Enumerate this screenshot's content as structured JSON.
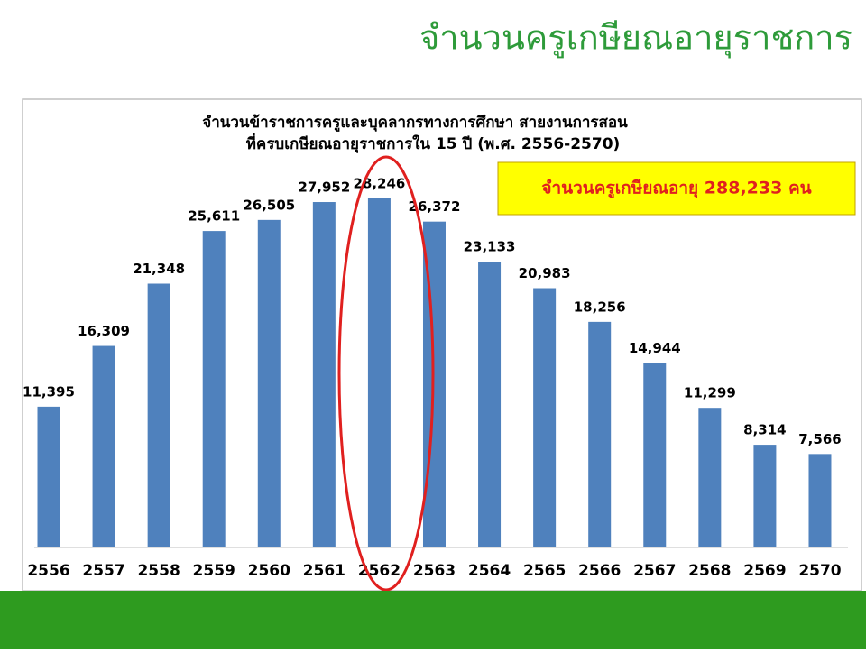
{
  "header": {
    "title": "จำนวนครูเกษียณอายุราชการ"
  },
  "chart_data": {
    "type": "bar",
    "title": [
      "จำนวนข้าราชการครูและบุคลากรทางการศึกษา สายงานการสอน",
      "ที่ครบเกษียณอายุราชการใน 15 ปี (พ.ศ. 2556-2570)"
    ],
    "annotation": "จำนวนครูเกษียณอายุ 288,233 คน",
    "categories": [
      "2556",
      "2557",
      "2558",
      "2559",
      "2560",
      "2561",
      "2562",
      "2563",
      "2564",
      "2565",
      "2566",
      "2567",
      "2568",
      "2569",
      "2570"
    ],
    "values": [
      11395,
      16309,
      21348,
      25611,
      26505,
      27952,
      28246,
      26372,
      23133,
      20983,
      18256,
      14944,
      11299,
      8314,
      7566
    ],
    "value_labels": [
      "11,395",
      "16,309",
      "21,348",
      "25,611",
      "26,505",
      "27,952",
      "28,246",
      "26,372",
      "23,133",
      "20,983",
      "18,256",
      "14,944",
      "11,299",
      "8,314",
      "7,566"
    ],
    "color": "#4f81bd"
  }
}
